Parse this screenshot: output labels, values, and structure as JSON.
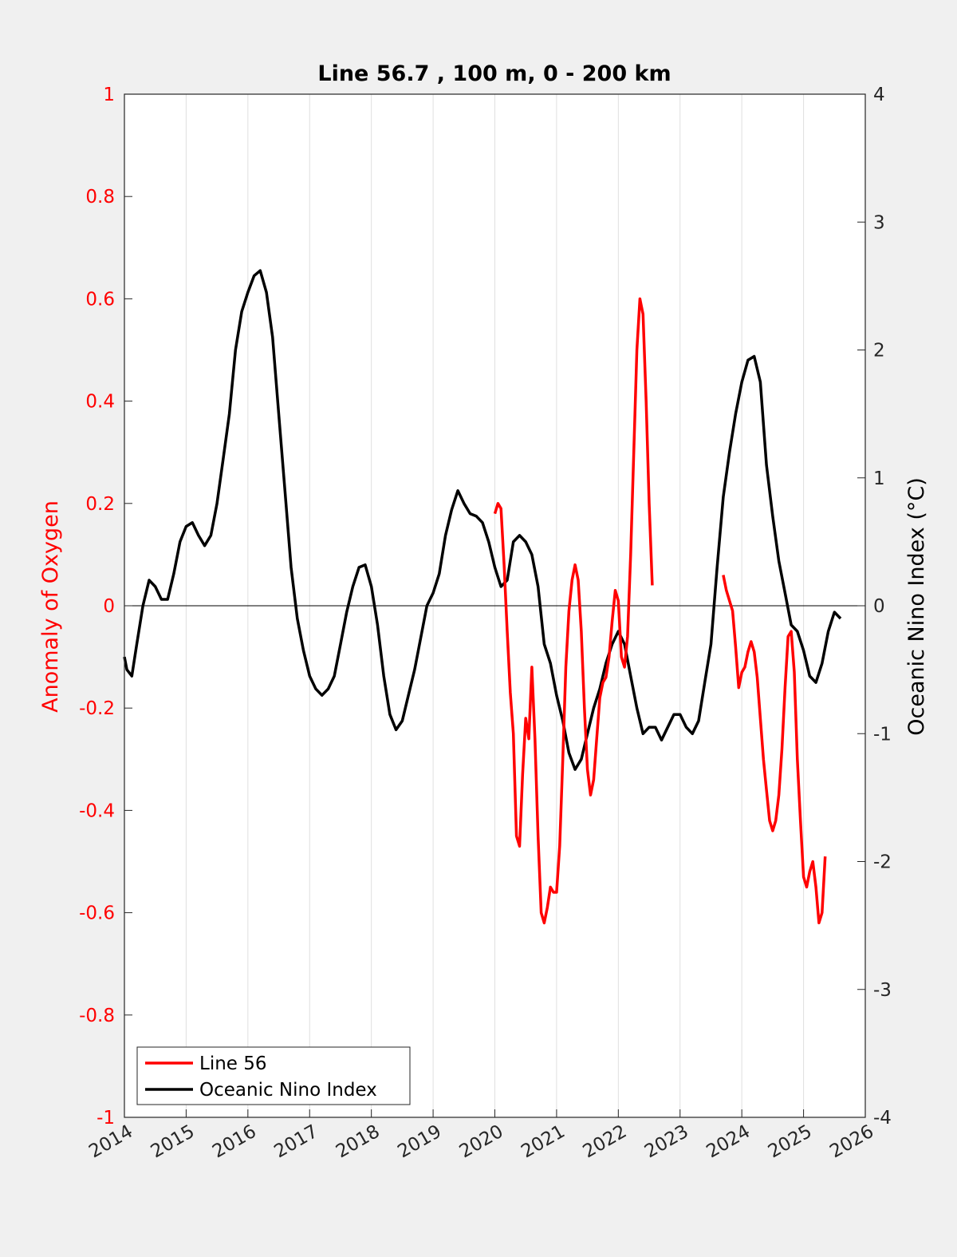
{
  "chart_data": {
    "type": "line",
    "title": "Line 56.7 , 100 m, 0 - 200 km",
    "ylabel_left": "Anomaly of Oxygen",
    "ylabel_right": "Oceanic Nino Index (°C)",
    "xlim": [
      2014,
      2026
    ],
    "ylim_left": [
      -1,
      1
    ],
    "ylim_right": [
      -4,
      4
    ],
    "x_ticks": [
      2014,
      2015,
      2016,
      2017,
      2018,
      2019,
      2020,
      2021,
      2022,
      2023,
      2024,
      2025,
      2026
    ],
    "x_tick_labels": [
      "2014",
      "2015",
      "2016",
      "2017",
      "2018",
      "2019",
      "2020",
      "2021",
      "2022",
      "2023",
      "2024",
      "2025",
      "2026"
    ],
    "y_left_ticks": [
      -1,
      -0.8,
      -0.6,
      -0.4,
      -0.2,
      0,
      0.2,
      0.4,
      0.6,
      0.8,
      1
    ],
    "y_left_tick_labels": [
      "-1",
      "-0.8",
      "-0.6",
      "-0.4",
      "-0.2",
      "0",
      "0.2",
      "0.4",
      "0.6",
      "0.8",
      "1"
    ],
    "y_right_ticks": [
      -4,
      -3,
      -2,
      -1,
      0,
      1,
      2,
      3,
      4
    ],
    "y_right_tick_labels": [
      "-4",
      "-3",
      "-2",
      "-1",
      "0",
      "1",
      "2",
      "3",
      "4"
    ],
    "grid": "vertical",
    "legend_location": "bottom-left",
    "colors": {
      "line56": "#ff0000",
      "oni": "#000000",
      "left_axis": "#ff0000"
    },
    "series": [
      {
        "name": "Line 56",
        "axis": "left",
        "segments": [
          [
            [
              2020.0,
              0.18
            ],
            [
              2020.05,
              0.2
            ],
            [
              2020.1,
              0.19
            ],
            [
              2020.15,
              0.08
            ],
            [
              2020.2,
              -0.05
            ],
            [
              2020.25,
              -0.17
            ],
            [
              2020.3,
              -0.25
            ],
            [
              2020.35,
              -0.45
            ],
            [
              2020.4,
              -0.47
            ],
            [
              2020.45,
              -0.33
            ],
            [
              2020.5,
              -0.22
            ],
            [
              2020.55,
              -0.26
            ],
            [
              2020.6,
              -0.12
            ],
            [
              2020.65,
              -0.26
            ],
            [
              2020.7,
              -0.45
            ],
            [
              2020.75,
              -0.6
            ],
            [
              2020.8,
              -0.62
            ],
            [
              2020.85,
              -0.59
            ],
            [
              2020.9,
              -0.55
            ],
            [
              2020.95,
              -0.56
            ],
            [
              2021.0,
              -0.56
            ],
            [
              2021.05,
              -0.47
            ],
            [
              2021.1,
              -0.3
            ],
            [
              2021.15,
              -0.12
            ],
            [
              2021.2,
              -0.01
            ],
            [
              2021.25,
              0.05
            ],
            [
              2021.3,
              0.08
            ],
            [
              2021.35,
              0.05
            ],
            [
              2021.4,
              -0.05
            ],
            [
              2021.45,
              -0.2
            ],
            [
              2021.5,
              -0.32
            ],
            [
              2021.55,
              -0.37
            ],
            [
              2021.6,
              -0.34
            ],
            [
              2021.65,
              -0.26
            ],
            [
              2021.7,
              -0.18
            ],
            [
              2021.75,
              -0.15
            ],
            [
              2021.8,
              -0.14
            ],
            [
              2021.85,
              -0.1
            ],
            [
              2021.9,
              -0.03
            ],
            [
              2021.95,
              0.03
            ],
            [
              2022.0,
              0.01
            ],
            [
              2022.05,
              -0.1
            ],
            [
              2022.1,
              -0.12
            ],
            [
              2022.15,
              -0.06
            ],
            [
              2022.2,
              0.1
            ],
            [
              2022.25,
              0.3
            ],
            [
              2022.3,
              0.5
            ],
            [
              2022.35,
              0.6
            ],
            [
              2022.4,
              0.57
            ],
            [
              2022.45,
              0.4
            ],
            [
              2022.5,
              0.2
            ],
            [
              2022.55,
              0.04
            ]
          ],
          [
            [
              2023.7,
              0.06
            ],
            [
              2023.75,
              0.03
            ],
            [
              2023.8,
              0.01
            ],
            [
              2023.85,
              -0.01
            ],
            [
              2023.9,
              -0.08
            ],
            [
              2023.95,
              -0.16
            ],
            [
              2024.0,
              -0.13
            ],
            [
              2024.05,
              -0.12
            ],
            [
              2024.1,
              -0.09
            ],
            [
              2024.15,
              -0.07
            ],
            [
              2024.2,
              -0.09
            ],
            [
              2024.25,
              -0.14
            ],
            [
              2024.3,
              -0.22
            ],
            [
              2024.35,
              -0.3
            ],
            [
              2024.4,
              -0.36
            ],
            [
              2024.45,
              -0.42
            ],
            [
              2024.5,
              -0.44
            ],
            [
              2024.55,
              -0.42
            ],
            [
              2024.6,
              -0.37
            ],
            [
              2024.65,
              -0.28
            ],
            [
              2024.7,
              -0.16
            ],
            [
              2024.75,
              -0.06
            ],
            [
              2024.8,
              -0.05
            ],
            [
              2024.85,
              -0.13
            ],
            [
              2024.9,
              -0.3
            ],
            [
              2024.95,
              -0.42
            ],
            [
              2025.0,
              -0.53
            ],
            [
              2025.05,
              -0.55
            ],
            [
              2025.1,
              -0.52
            ],
            [
              2025.15,
              -0.5
            ],
            [
              2025.2,
              -0.55
            ],
            [
              2025.25,
              -0.62
            ],
            [
              2025.3,
              -0.6
            ],
            [
              2025.35,
              -0.49
            ]
          ]
        ]
      },
      {
        "name": "Oceanic Nino Index",
        "axis": "right",
        "segments": [
          [
            [
              2014.0,
              -0.4
            ],
            [
              2014.04,
              -0.5
            ],
            [
              2014.12,
              -0.55
            ],
            [
              2014.2,
              -0.3
            ],
            [
              2014.3,
              0.0
            ],
            [
              2014.4,
              0.2
            ],
            [
              2014.5,
              0.15
            ],
            [
              2014.6,
              0.05
            ],
            [
              2014.7,
              0.05
            ],
            [
              2014.8,
              0.25
            ],
            [
              2014.9,
              0.5
            ],
            [
              2015.0,
              0.62
            ],
            [
              2015.1,
              0.65
            ],
            [
              2015.2,
              0.55
            ],
            [
              2015.3,
              0.47
            ],
            [
              2015.4,
              0.55
            ],
            [
              2015.5,
              0.8
            ],
            [
              2015.6,
              1.15
            ],
            [
              2015.7,
              1.5
            ],
            [
              2015.8,
              2.0
            ],
            [
              2015.9,
              2.3
            ],
            [
              2016.0,
              2.45
            ],
            [
              2016.1,
              2.58
            ],
            [
              2016.2,
              2.62
            ],
            [
              2016.3,
              2.45
            ],
            [
              2016.4,
              2.1
            ],
            [
              2016.5,
              1.5
            ],
            [
              2016.6,
              0.9
            ],
            [
              2016.7,
              0.3
            ],
            [
              2016.8,
              -0.1
            ],
            [
              2016.9,
              -0.35
            ],
            [
              2017.0,
              -0.55
            ],
            [
              2017.1,
              -0.65
            ],
            [
              2017.2,
              -0.7
            ],
            [
              2017.3,
              -0.65
            ],
            [
              2017.4,
              -0.55
            ],
            [
              2017.5,
              -0.3
            ],
            [
              2017.6,
              -0.05
            ],
            [
              2017.7,
              0.15
            ],
            [
              2017.8,
              0.3
            ],
            [
              2017.9,
              0.32
            ],
            [
              2018.0,
              0.15
            ],
            [
              2018.1,
              -0.15
            ],
            [
              2018.2,
              -0.55
            ],
            [
              2018.3,
              -0.85
            ],
            [
              2018.4,
              -0.97
            ],
            [
              2018.5,
              -0.9
            ],
            [
              2018.6,
              -0.7
            ],
            [
              2018.7,
              -0.5
            ],
            [
              2018.8,
              -0.25
            ],
            [
              2018.9,
              0.0
            ],
            [
              2019.0,
              0.1
            ],
            [
              2019.1,
              0.25
            ],
            [
              2019.2,
              0.55
            ],
            [
              2019.3,
              0.75
            ],
            [
              2019.4,
              0.9
            ],
            [
              2019.5,
              0.8
            ],
            [
              2019.6,
              0.72
            ],
            [
              2019.7,
              0.7
            ],
            [
              2019.8,
              0.65
            ],
            [
              2019.9,
              0.5
            ],
            [
              2020.0,
              0.3
            ],
            [
              2020.1,
              0.15
            ],
            [
              2020.2,
              0.2
            ],
            [
              2020.3,
              0.5
            ],
            [
              2020.4,
              0.55
            ],
            [
              2020.5,
              0.5
            ],
            [
              2020.6,
              0.4
            ],
            [
              2020.7,
              0.15
            ],
            [
              2020.8,
              -0.3
            ],
            [
              2020.9,
              -0.45
            ],
            [
              2021.0,
              -0.7
            ],
            [
              2021.1,
              -0.9
            ],
            [
              2021.2,
              -1.15
            ],
            [
              2021.3,
              -1.28
            ],
            [
              2021.4,
              -1.2
            ],
            [
              2021.5,
              -1.0
            ],
            [
              2021.6,
              -0.8
            ],
            [
              2021.7,
              -0.65
            ],
            [
              2021.8,
              -0.45
            ],
            [
              2021.9,
              -0.3
            ],
            [
              2022.0,
              -0.2
            ],
            [
              2022.1,
              -0.3
            ],
            [
              2022.2,
              -0.55
            ],
            [
              2022.3,
              -0.8
            ],
            [
              2022.4,
              -1.0
            ],
            [
              2022.5,
              -0.95
            ],
            [
              2022.6,
              -0.95
            ],
            [
              2022.7,
              -1.05
            ],
            [
              2022.8,
              -0.95
            ],
            [
              2022.9,
              -0.85
            ],
            [
              2023.0,
              -0.85
            ],
            [
              2023.1,
              -0.95
            ],
            [
              2023.2,
              -1.0
            ],
            [
              2023.3,
              -0.9
            ],
            [
              2023.4,
              -0.6
            ],
            [
              2023.5,
              -0.3
            ],
            [
              2023.6,
              0.3
            ],
            [
              2023.7,
              0.85
            ],
            [
              2023.8,
              1.2
            ],
            [
              2023.9,
              1.5
            ],
            [
              2024.0,
              1.75
            ],
            [
              2024.1,
              1.92
            ],
            [
              2024.2,
              1.95
            ],
            [
              2024.3,
              1.75
            ],
            [
              2024.4,
              1.1
            ],
            [
              2024.5,
              0.7
            ],
            [
              2024.6,
              0.35
            ],
            [
              2024.7,
              0.1
            ],
            [
              2024.8,
              -0.15
            ],
            [
              2024.9,
              -0.2
            ],
            [
              2025.0,
              -0.35
            ],
            [
              2025.1,
              -0.55
            ],
            [
              2025.2,
              -0.6
            ],
            [
              2025.3,
              -0.45
            ],
            [
              2025.4,
              -0.2
            ],
            [
              2025.5,
              -0.05
            ],
            [
              2025.6,
              -0.1
            ]
          ]
        ]
      }
    ]
  }
}
